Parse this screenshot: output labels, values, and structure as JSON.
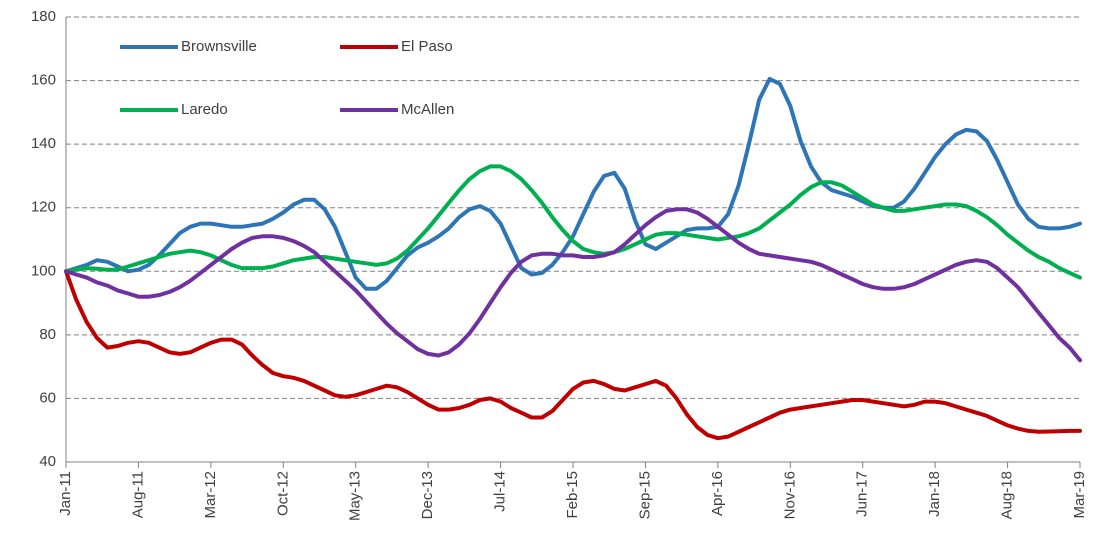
{
  "chart_data": {
    "type": "line",
    "categories": [
      "Jan-11",
      null,
      null,
      null,
      null,
      null,
      null,
      "Aug-11",
      null,
      null,
      null,
      null,
      null,
      null,
      "Mar-12",
      null,
      null,
      null,
      null,
      null,
      null,
      "Oct-12",
      null,
      null,
      null,
      null,
      null,
      null,
      "May-13",
      null,
      null,
      null,
      null,
      null,
      null,
      "Dec-13",
      null,
      null,
      null,
      null,
      null,
      null,
      "Jul-14",
      null,
      null,
      null,
      null,
      null,
      null,
      "Feb-15",
      null,
      null,
      null,
      null,
      null,
      null,
      "Sep-15",
      null,
      null,
      null,
      null,
      null,
      null,
      "Apr-16",
      null,
      null,
      null,
      null,
      null,
      null,
      "Nov-16",
      null,
      null,
      null,
      null,
      null,
      null,
      "Jun-17",
      null,
      null,
      null,
      null,
      null,
      null,
      "Jan-18",
      null,
      null,
      null,
      null,
      null,
      null,
      "Aug-18",
      null,
      null,
      null,
      null,
      null,
      null,
      "Mar-19"
    ],
    "series": [
      {
        "name": "Brownsville",
        "color": "#2e75b6",
        "values": [
          100,
          101,
          102,
          103.5,
          103,
          101.5,
          100,
          100.5,
          102,
          105,
          108.5,
          112,
          114,
          115,
          115,
          114.5,
          114,
          114,
          114.5,
          115,
          116.5,
          118.5,
          121,
          122.5,
          122.5,
          119.5,
          114,
          106,
          98,
          94.5,
          94.5,
          97,
          101,
          105,
          107.5,
          109,
          111,
          113.5,
          117,
          119.5,
          120.5,
          119,
          115,
          108,
          101,
          99,
          99.5,
          102,
          106,
          111,
          118,
          125,
          130,
          131,
          126,
          116,
          108.5,
          107,
          109,
          111,
          113,
          113.5,
          113.5,
          114,
          118,
          127,
          140,
          154,
          160.5,
          159,
          152,
          141,
          133,
          128,
          125.5,
          124.5,
          123.5,
          122,
          120.5,
          120,
          120,
          122,
          126,
          131,
          136,
          140,
          143,
          144.5,
          144,
          141,
          135,
          128,
          121,
          116.5,
          114,
          113.5,
          113.5,
          114,
          115
        ]
      },
      {
        "name": "El Paso",
        "color": "#c00000",
        "values": [
          100,
          91,
          84,
          79,
          76,
          76.5,
          77.5,
          78,
          77.5,
          76,
          74.5,
          74,
          74.5,
          76,
          77.5,
          78.5,
          78.5,
          77,
          73.5,
          70.5,
          68,
          67,
          66.5,
          65.5,
          64,
          62.5,
          61,
          60.5,
          61,
          62,
          63,
          64,
          63.5,
          62,
          60,
          58,
          56.5,
          56.5,
          57,
          58,
          59.5,
          60,
          59,
          57,
          55.5,
          54,
          54,
          56,
          59.5,
          63,
          65,
          65.5,
          64.5,
          63,
          62.5,
          63.5,
          64.5,
          65.5,
          64,
          60,
          55,
          51,
          48.5,
          47.5,
          48,
          49.5,
          51,
          52.5,
          54,
          55.5,
          56.5,
          57,
          57.5,
          58,
          58.5,
          59,
          59.5,
          59.5,
          59,
          58.5,
          58,
          57.5,
          58,
          59,
          59,
          58.5,
          57.5,
          56.5,
          55.5,
          54.5,
          53,
          51.5,
          50.5,
          49.8,
          49.5,
          49.6,
          49.7,
          49.8,
          49.8
        ]
      },
      {
        "name": "Laredo",
        "color": "#00b050",
        "values": [
          100,
          100.5,
          101,
          100.8,
          100.5,
          100.5,
          101.5,
          102.5,
          103.5,
          104.5,
          105.5,
          106,
          106.5,
          106,
          105,
          103.5,
          102,
          101,
          101,
          101,
          101.5,
          102.5,
          103.5,
          104,
          104.5,
          104.5,
          104,
          103.5,
          103,
          102.5,
          102,
          102.5,
          104,
          106.5,
          110,
          113.5,
          117.5,
          121.5,
          125.5,
          129,
          131.5,
          133,
          133,
          131.5,
          129,
          125.5,
          121.5,
          117,
          113,
          109.5,
          107,
          106,
          105.5,
          106,
          107,
          108.5,
          110,
          111.5,
          112,
          112,
          111.5,
          111,
          110.5,
          110,
          110.5,
          111,
          112,
          113.5,
          116,
          118.5,
          121,
          124,
          126.5,
          128,
          128,
          127,
          125,
          123,
          121,
          120,
          119,
          119,
          119.5,
          120,
          120.5,
          121,
          121,
          120.5,
          119,
          117,
          114.5,
          111.5,
          109,
          106.5,
          104.5,
          103,
          101,
          99.5,
          98
        ]
      },
      {
        "name": "McAllen",
        "color": "#7030a0",
        "values": [
          100,
          99,
          98,
          96.5,
          95.5,
          94,
          93,
          92,
          92,
          92.5,
          93.5,
          95,
          97,
          99.5,
          102,
          104.5,
          107,
          109,
          110.5,
          111,
          111,
          110.5,
          109.5,
          108,
          106,
          103,
          100,
          97,
          94,
          90.5,
          87,
          83.5,
          80.5,
          78,
          75.5,
          74,
          73.5,
          74.5,
          77,
          80.5,
          85,
          90,
          95,
          99.5,
          103,
          105,
          105.5,
          105.5,
          105,
          105,
          104.5,
          104.5,
          105,
          106,
          108.5,
          111.5,
          114.5,
          117,
          119,
          119.5,
          119.5,
          118.5,
          116.5,
          114,
          111.5,
          109,
          107,
          105.5,
          105,
          104.5,
          104,
          103.5,
          103,
          102,
          100.5,
          99,
          97.5,
          96,
          95,
          94.5,
          94.5,
          95,
          96,
          97.5,
          99,
          100.5,
          102,
          103,
          103.5,
          103,
          101,
          98,
          95,
          91,
          87,
          83,
          79,
          76,
          72
        ]
      }
    ],
    "ylim": [
      40,
      180
    ],
    "yticks": [
      40,
      60,
      80,
      100,
      120,
      140,
      160,
      180
    ],
    "grid": true,
    "legend": "upper left"
  }
}
